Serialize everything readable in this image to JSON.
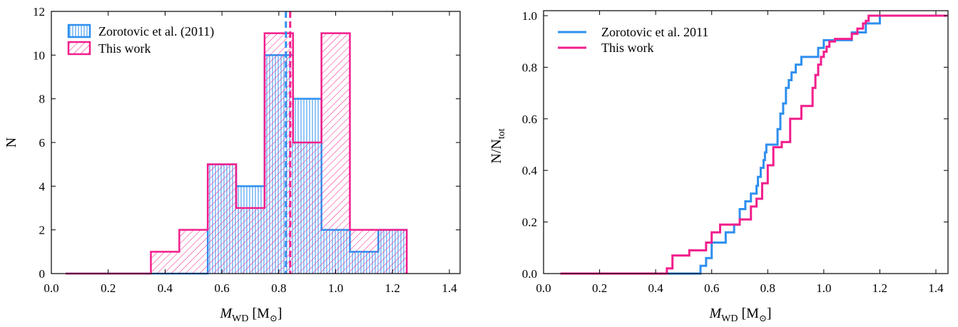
{
  "colors": {
    "zorotovic": "#2e8fef",
    "thiswork": "#f21e8c",
    "axis": "#000000"
  },
  "chart_data": [
    {
      "type": "histogram",
      "xlabel": {
        "main": "M",
        "sub": "WD",
        "unit_open": " [M",
        "unit_sub": "⊙",
        "unit_close": "]"
      },
      "ylabel": "N",
      "xlim": [
        0.05,
        1.44
      ],
      "ylim": [
        0,
        12
      ],
      "xticks": [
        "0.0",
        "0.2",
        "0.4",
        "0.6",
        "0.8",
        "1.0",
        "1.2",
        "1.4"
      ],
      "yticks": [
        "0",
        "2",
        "4",
        "6",
        "8",
        "10",
        "12"
      ],
      "bin_edges": [
        0.05,
        0.15,
        0.25,
        0.35,
        0.45,
        0.55,
        0.65,
        0.75,
        0.85,
        0.95,
        1.05,
        1.15,
        1.25
      ],
      "series": [
        {
          "name": "Zorotovic et al. (2011)",
          "key": "zorotovic",
          "hatch": "vertical",
          "values": [
            0,
            0,
            0,
            0,
            0,
            5,
            4,
            10,
            8,
            2,
            1,
            2
          ],
          "mean": 0.825
        },
        {
          "name": "This work",
          "key": "thiswork",
          "hatch": "diagonal",
          "values": [
            0,
            0,
            0,
            1,
            2,
            5,
            3,
            11,
            6,
            11,
            2,
            2
          ],
          "mean": 0.84
        }
      ],
      "legend": "top-left"
    },
    {
      "type": "line",
      "subtype": "cumulative step",
      "xlabel": {
        "main": "M",
        "sub": "WD",
        "unit_open": " [M",
        "unit_sub": "⊙",
        "unit_close": "]"
      },
      "ylabel": {
        "main": "N/N",
        "sub": "tot"
      },
      "xlim": [
        0.0,
        1.44
      ],
      "ylim": [
        0.0,
        1.02
      ],
      "xticks": [
        "0.0",
        "0.2",
        "0.4",
        "0.6",
        "0.8",
        "1.0",
        "1.2",
        "1.4"
      ],
      "yticks": [
        "0.0",
        "0.2",
        "0.4",
        "0.6",
        "0.8",
        "1.0"
      ],
      "series": [
        {
          "name": "Zorotovic et al. 2011",
          "key": "zorotovic",
          "x": [
            0.06,
            0.56,
            0.58,
            0.6,
            0.65,
            0.68,
            0.7,
            0.72,
            0.74,
            0.76,
            0.765,
            0.775,
            0.785,
            0.79,
            0.795,
            0.8,
            0.835,
            0.845,
            0.855,
            0.865,
            0.875,
            0.885,
            0.9,
            0.92,
            0.935,
            0.98,
            1.0,
            1.06,
            1.1,
            1.15,
            1.2,
            1.44
          ],
          "y": [
            0.0,
            0.03,
            0.06,
            0.12,
            0.16,
            0.19,
            0.25,
            0.28,
            0.31,
            0.34,
            0.375,
            0.41,
            0.44,
            0.47,
            0.5,
            0.5,
            0.56,
            0.62,
            0.66,
            0.72,
            0.75,
            0.78,
            0.81,
            0.84,
            0.84,
            0.875,
            0.905,
            0.905,
            0.935,
            0.97,
            1.0,
            1.0
          ],
          "step_end_x": 1.44
        },
        {
          "name": "This work",
          "key": "thiswork",
          "x": [
            0.06,
            0.44,
            0.46,
            0.52,
            0.58,
            0.6,
            0.63,
            0.7,
            0.74,
            0.76,
            0.78,
            0.8,
            0.82,
            0.85,
            0.88,
            0.92,
            0.96,
            0.97,
            0.98,
            0.99,
            1.0,
            1.01,
            1.02,
            1.04,
            1.06,
            1.1,
            1.12,
            1.14,
            1.15,
            1.16,
            1.44
          ],
          "y": [
            0.0,
            0.02,
            0.07,
            0.09,
            0.12,
            0.16,
            0.19,
            0.21,
            0.26,
            0.29,
            0.35,
            0.42,
            0.49,
            0.51,
            0.6,
            0.65,
            0.72,
            0.77,
            0.81,
            0.84,
            0.86,
            0.88,
            0.9,
            0.91,
            0.91,
            0.93,
            0.95,
            0.97,
            0.98,
            1.0,
            1.0
          ],
          "step_end_x": 1.44
        }
      ],
      "legend": "top-left"
    }
  ]
}
